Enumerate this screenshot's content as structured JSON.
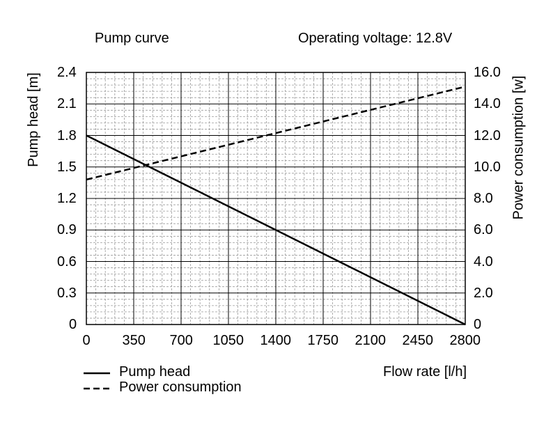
{
  "chart_data": {
    "type": "line",
    "title": "Pump curve",
    "subtitle": "Operating voltage: 12.8V",
    "xlabel": "Flow rate [l/h]",
    "ylabel_left": "Pump head [m]",
    "ylabel_right": "Power consumption [w]",
    "xlim": [
      0,
      2800
    ],
    "ylim_left": [
      0,
      2.4
    ],
    "ylim_right": [
      0,
      16
    ],
    "x_ticks": [
      "0",
      "350",
      "700",
      "1050",
      "1400",
      "1750",
      "2100",
      "2450",
      "2800"
    ],
    "y_left_ticks": [
      "0",
      "0.3",
      "0.6",
      "0.9",
      "1.2",
      "1.5",
      "1.8",
      "2.1",
      "2.4"
    ],
    "y_right_ticks": [
      "0",
      "2.0",
      "4.0",
      "6.0",
      "8.0",
      "10.0",
      "12.0",
      "14.0",
      "16.0"
    ],
    "grid": true,
    "legend_position": "bottom-left",
    "series": [
      {
        "name": "Pump head",
        "axis": "left",
        "style": "solid",
        "color": "#000000",
        "x": [
          0,
          2800
        ],
        "y": [
          1.8,
          0
        ]
      },
      {
        "name": "Power consumption",
        "axis": "right",
        "style": "dashed",
        "color": "#000000",
        "x": [
          0,
          2800
        ],
        "y": [
          9.2,
          15.1
        ]
      }
    ]
  }
}
